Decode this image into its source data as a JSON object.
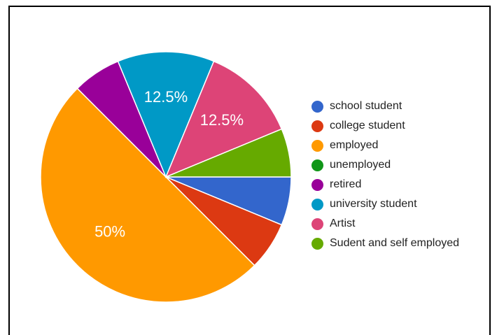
{
  "chart_data": {
    "type": "pie",
    "legend_position": "right",
    "slices": [
      {
        "name": "school student",
        "value": 6.25,
        "color": "#3366CC",
        "label": ""
      },
      {
        "name": "college student",
        "value": 6.25,
        "color": "#DC3912",
        "label": ""
      },
      {
        "name": "employed",
        "value": 50,
        "color": "#FF9900",
        "label": "50%"
      },
      {
        "name": "unemployed",
        "value": 0,
        "color": "#109618",
        "label": ""
      },
      {
        "name": "retired",
        "value": 6.25,
        "color": "#990099",
        "label": ""
      },
      {
        "name": "university student",
        "value": 12.5,
        "color": "#0099C6",
        "label": "12.5%"
      },
      {
        "name": "Artist",
        "value": 12.5,
        "color": "#DD4477",
        "label": "12.5%"
      },
      {
        "name": "Sudent and self employed",
        "value": 6.25,
        "color": "#66AA00",
        "label": ""
      }
    ]
  }
}
